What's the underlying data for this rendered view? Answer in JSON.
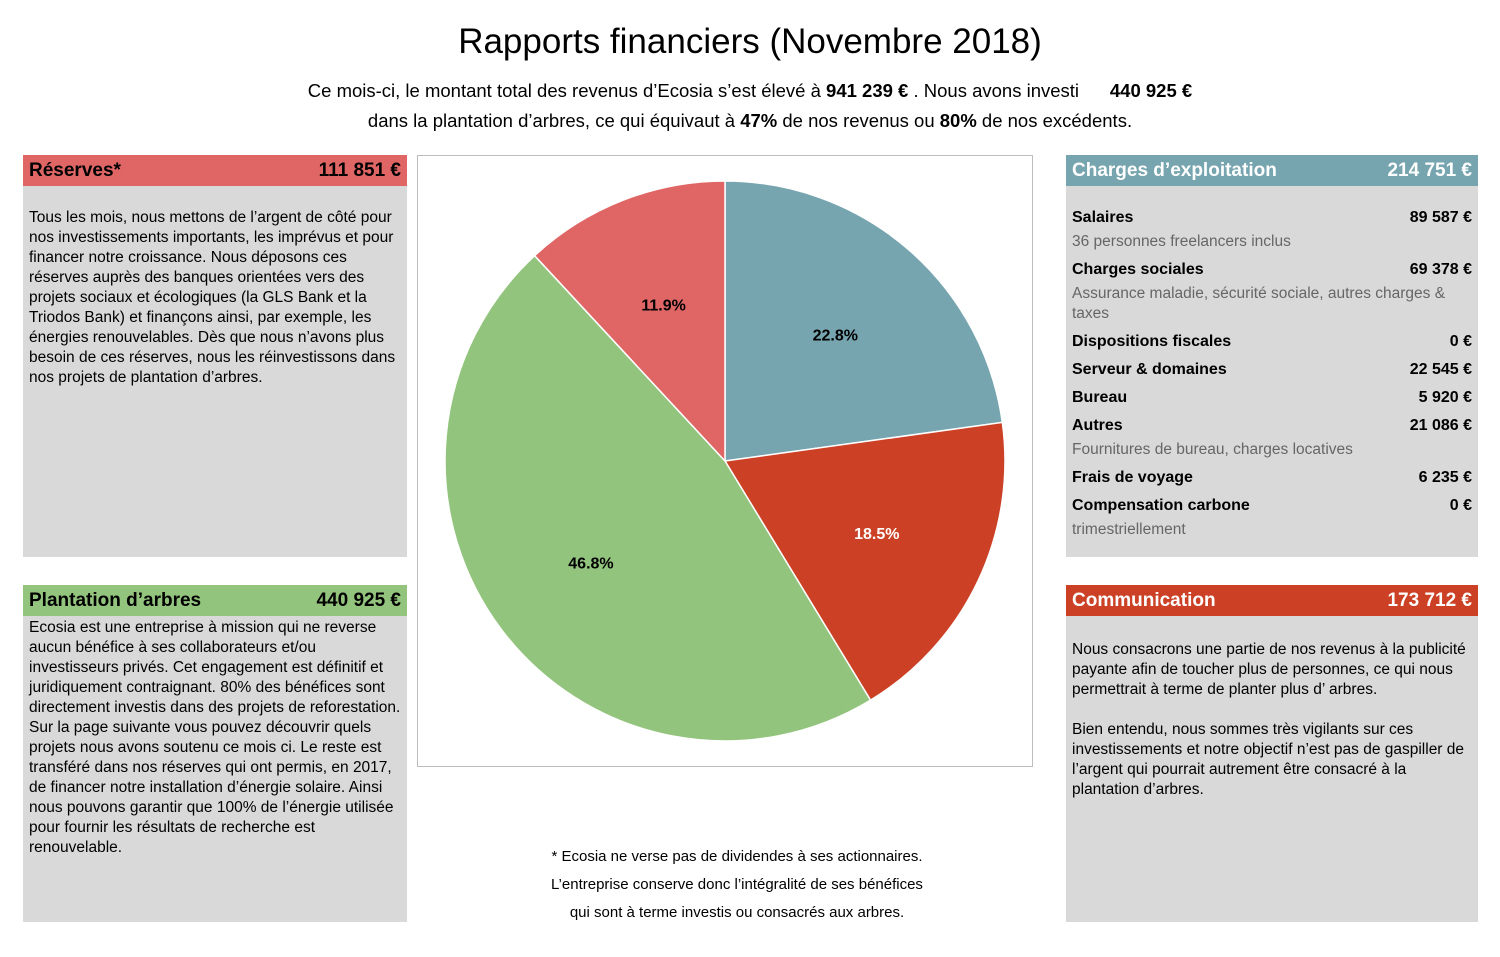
{
  "header": {
    "title": "Rapports financiers (Novembre 2018)",
    "intro_1": "Ce mois-ci, le montant total des revenus d’Ecosia s’est élevé à",
    "revenue": "941 239 €",
    "intro_2": ". Nous avons investi",
    "invested": "440 925 €",
    "intro_3": "dans la plantation d’arbres, ce qui équivaut à",
    "pct_revenue": "47%",
    "intro_4": "de nos revenus ou",
    "pct_surplus": "80%",
    "intro_5": "de nos excédents."
  },
  "reserves": {
    "title": "Réserves*",
    "amount": "111 851 €",
    "color": "#e06666",
    "text": "Tous les mois, nous mettons de l’argent de côté pour nos investissements importants, les imprévus et pour financer notre croissance. Nous déposons ces réserves auprès des banques orientées vers des projets sociaux et écologiques (la GLS Bank et la Triodos Bank) et finançons ainsi, par exemple, les énergies renouvelables. Dès que nous n’avons plus besoin de ces réserves, nous les réinvestissons dans nos projets de plantation d’arbres."
  },
  "trees": {
    "title": "Plantation d’arbres",
    "amount": "440 925 €",
    "color": "#93c47d",
    "text": "Ecosia est une entreprise à mission qui ne reverse aucun bénéfice à ses collaborateurs et/ou investisseurs privés. Cet engagement est définitif et juridiquement contraignant. 80% des bénéfices sont directement investis dans des projets de reforestation. Sur la page suivante vous pouvez découvrir quels projets nous avons soutenu ce mois ci. Le reste est transféré dans nos réserves qui ont permis, en 2017, de financer notre installation d’énergie solaire. Ainsi nous pouvons garantir que 100% de l’énergie utilisée pour fournir les résultats de recherche est renouvelable."
  },
  "charges": {
    "title": "Charges d’exploitation",
    "amount": "214 751 €",
    "color": "#76a5af",
    "rows": [
      {
        "label": "Salaires",
        "value": "89 587 €",
        "note": "36 personnes freelancers inclus"
      },
      {
        "label": "Charges sociales",
        "value": "69 378 €",
        "note": "Assurance maladie, sécurité sociale, autres charges & taxes"
      },
      {
        "label": "Dispositions fiscales",
        "value": "0 €",
        "note": ""
      },
      {
        "label": "Serveur & domaines",
        "value": "22 545 €",
        "note": ""
      },
      {
        "label": "Bureau",
        "value": "5 920 €",
        "note": ""
      },
      {
        "label": "Autres",
        "value": "21 086 €",
        "note": "Fournitures de bureau, charges locatives"
      },
      {
        "label": "Frais de voyage",
        "value": "6 235 €",
        "note": ""
      },
      {
        "label": "Compensation carbone",
        "value": "0 €",
        "note": "trimestriellement"
      }
    ]
  },
  "communication": {
    "title": "Communication",
    "amount": "173 712 €",
    "color": "#cc4125",
    "text_1": "Nous consacrons une partie de nos revenus à la publicité payante afin de toucher plus de personnes, ce qui nous permettrait à terme de planter plus d’ arbres.",
    "text_2": "Bien entendu, nous sommes très vigilants sur ces investissements et notre objectif n’est pas de gaspiller de l’argent qui pourrait autrement être consacré à la plantation d’arbres."
  },
  "footnote": {
    "line_1": "* Ecosia ne verse pas de dividendes à ses actionnaires.",
    "line_2": "L’entreprise conserve donc l’intégralité de ses bénéfices",
    "line_3": "qui sont à terme investis ou consacrés aux arbres."
  },
  "chart_data": {
    "type": "pie",
    "title": "",
    "categories": [
      "Charges d’exploitation",
      "Communication",
      "Plantation d’arbres",
      "Réserves*"
    ],
    "values": [
      22.8,
      18.5,
      46.8,
      11.9
    ],
    "labels": [
      "22.8%",
      "18.5%",
      "46.8%",
      "11.9%"
    ],
    "colors": [
      "#76a5af",
      "#cc4125",
      "#93c47d",
      "#e06666"
    ],
    "label_colors": [
      "#000000",
      "#ffffff",
      "#000000",
      "#000000"
    ],
    "start": "12 o'clock, clockwise"
  }
}
